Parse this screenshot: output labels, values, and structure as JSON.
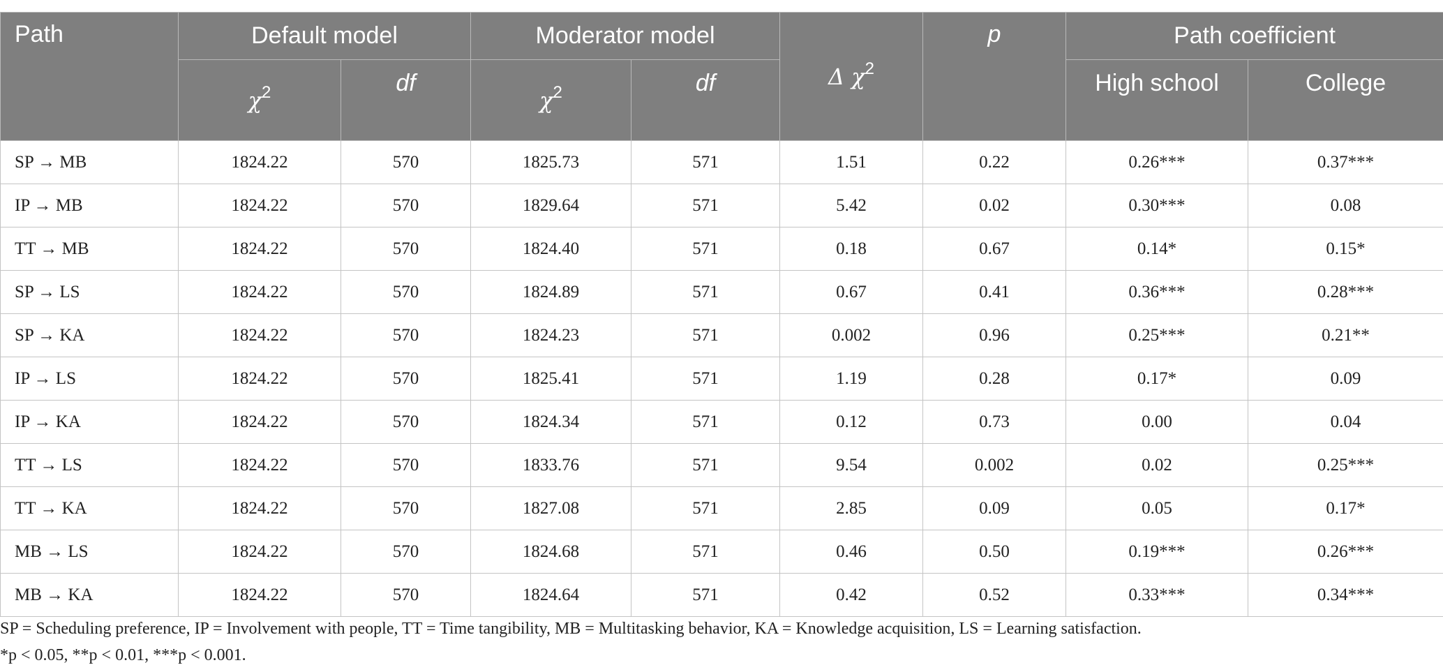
{
  "table": {
    "headers": {
      "path": "Path",
      "default_model": "Default model",
      "moderator_model": "Moderator model",
      "delta_chi": "Δ χ2",
      "p": "p",
      "path_coefficient": "Path coefficient",
      "chi2": "χ2",
      "df": "df",
      "high_school": "High school",
      "college": "College"
    },
    "rows": [
      {
        "path": "SP → MB",
        "default_chi2": "1824.22",
        "default_df": "570",
        "moderator_chi2": "1825.73",
        "moderator_df": "571",
        "delta_chi2": "1.51",
        "p": "0.22",
        "high_school": "0.26***",
        "college": "0.37***"
      },
      {
        "path": "IP → MB",
        "default_chi2": "1824.22",
        "default_df": "570",
        "moderator_chi2": "1829.64",
        "moderator_df": "571",
        "delta_chi2": "5.42",
        "p": "0.02",
        "high_school": "0.30***",
        "college": "0.08"
      },
      {
        "path": "TT → MB",
        "default_chi2": "1824.22",
        "default_df": "570",
        "moderator_chi2": "1824.40",
        "moderator_df": "571",
        "delta_chi2": "0.18",
        "p": "0.67",
        "high_school": "0.14*",
        "college": "0.15*"
      },
      {
        "path": "SP → LS",
        "default_chi2": "1824.22",
        "default_df": "570",
        "moderator_chi2": "1824.89",
        "moderator_df": "571",
        "delta_chi2": "0.67",
        "p": "0.41",
        "high_school": "0.36***",
        "college": "0.28***"
      },
      {
        "path": "SP → KA",
        "default_chi2": "1824.22",
        "default_df": "570",
        "moderator_chi2": "1824.23",
        "moderator_df": "571",
        "delta_chi2": "0.002",
        "p": "0.96",
        "high_school": "0.25***",
        "college": "0.21**"
      },
      {
        "path": "IP → LS",
        "default_chi2": "1824.22",
        "default_df": "570",
        "moderator_chi2": "1825.41",
        "moderator_df": "571",
        "delta_chi2": "1.19",
        "p": "0.28",
        "high_school": "0.17*",
        "college": "0.09"
      },
      {
        "path": "IP → KA",
        "default_chi2": "1824.22",
        "default_df": "570",
        "moderator_chi2": "1824.34",
        "moderator_df": "571",
        "delta_chi2": "0.12",
        "p": "0.73",
        "high_school": "0.00",
        "college": "0.04"
      },
      {
        "path": "TT → LS",
        "default_chi2": "1824.22",
        "default_df": "570",
        "moderator_chi2": "1833.76",
        "moderator_df": "571",
        "delta_chi2": "9.54",
        "p": "0.002",
        "high_school": "0.02",
        "college": "0.25***"
      },
      {
        "path": "TT → KA",
        "default_chi2": "1824.22",
        "default_df": "570",
        "moderator_chi2": "1827.08",
        "moderator_df": "571",
        "delta_chi2": "2.85",
        "p": "0.09",
        "high_school": "0.05",
        "college": "0.17*"
      },
      {
        "path": "MB → LS",
        "default_chi2": "1824.22",
        "default_df": "570",
        "moderator_chi2": "1824.68",
        "moderator_df": "571",
        "delta_chi2": "0.46",
        "p": "0.50",
        "high_school": "0.19***",
        "college": "0.26***"
      },
      {
        "path": "MB → KA",
        "default_chi2": "1824.22",
        "default_df": "570",
        "moderator_chi2": "1824.64",
        "moderator_df": "571",
        "delta_chi2": "0.42",
        "p": "0.52",
        "high_school": "0.33***",
        "college": "0.34***"
      }
    ]
  },
  "notes": {
    "abbreviations": "SP = Scheduling preference, IP = Involvement with people, TT = Time tangibility, MB = Multitasking behavior, KA = Knowledge acquisition, LS = Learning satisfaction.",
    "significance": "*p < 0.05, **p < 0.01, ***p < 0.001."
  }
}
